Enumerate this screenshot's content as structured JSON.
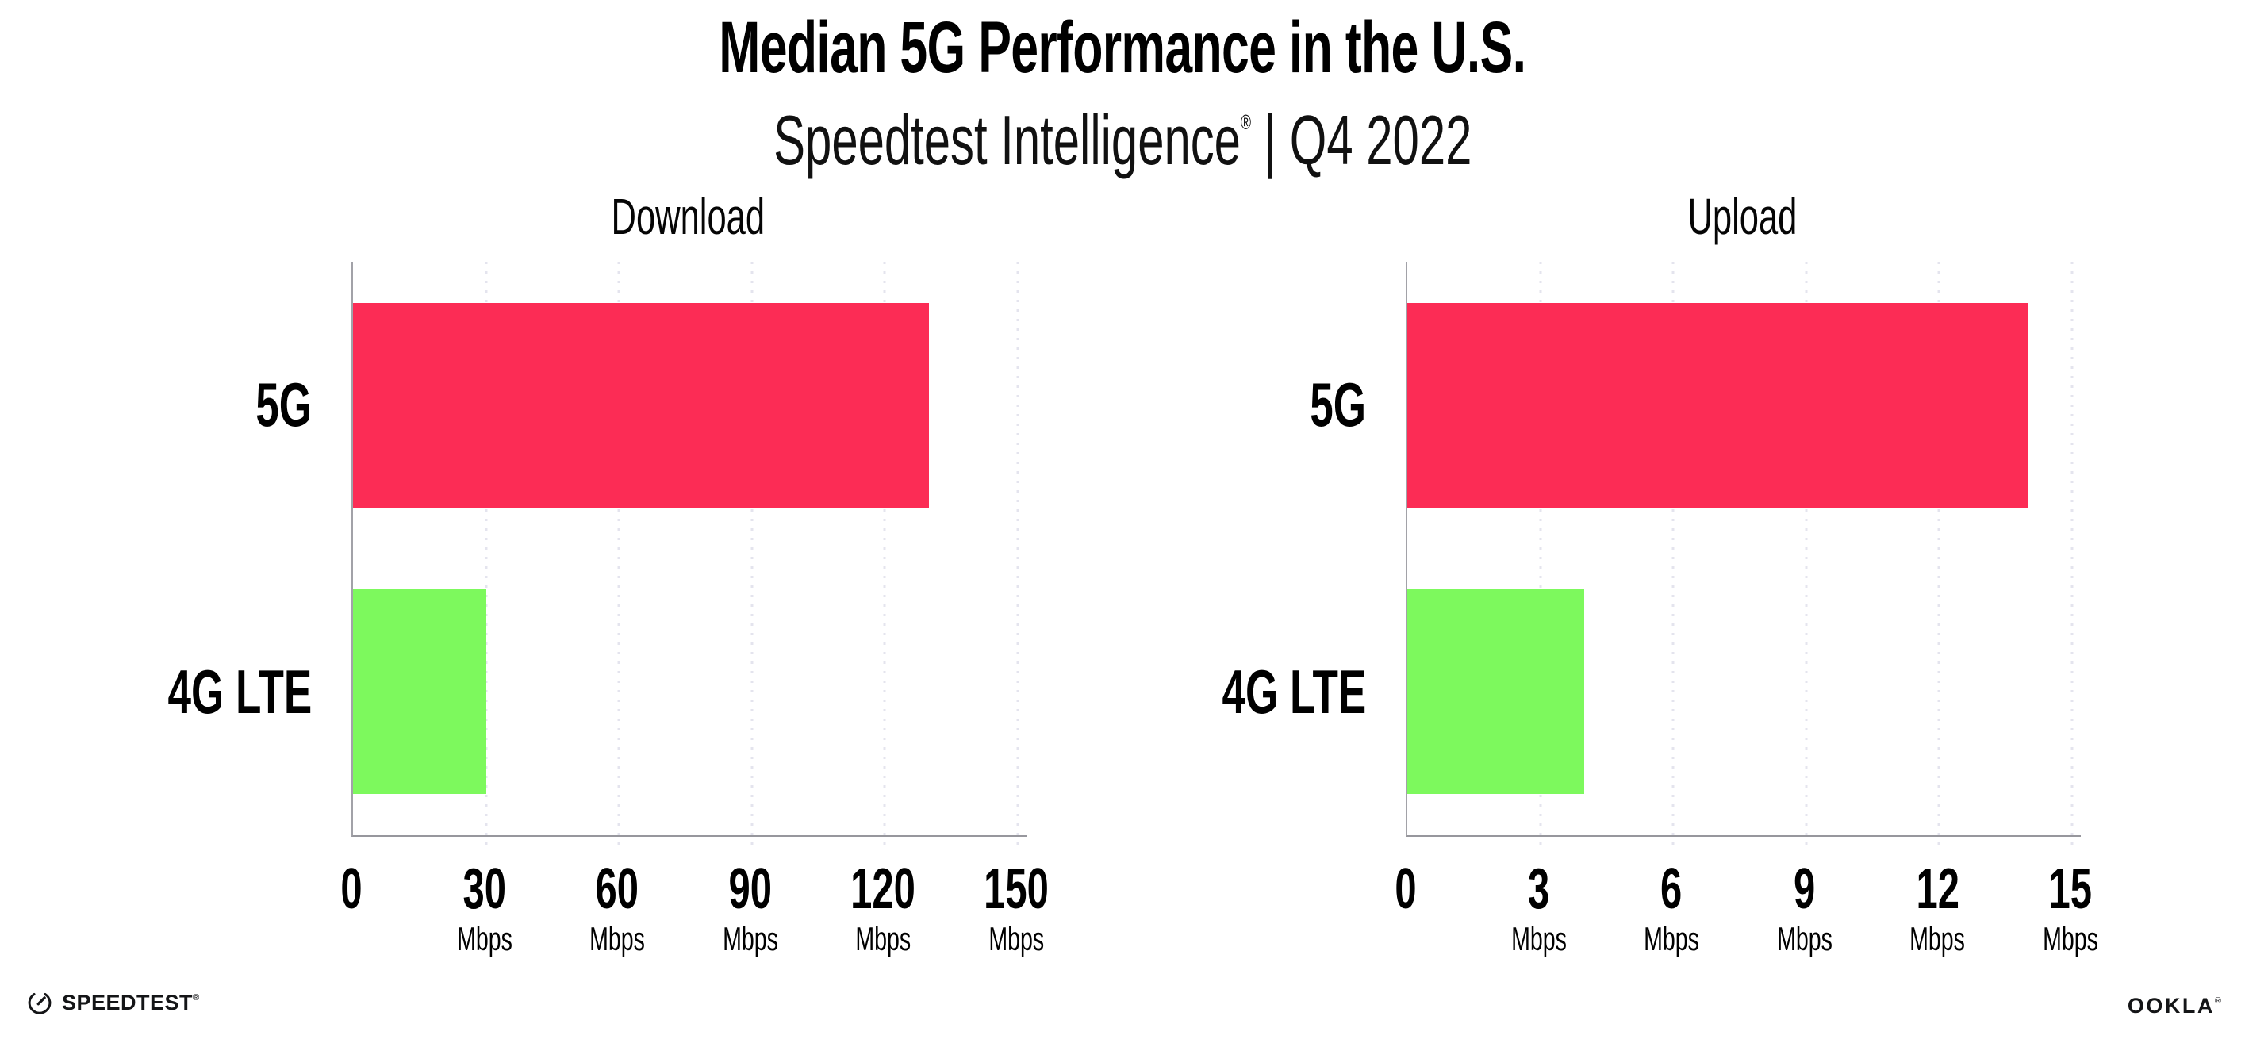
{
  "header": {
    "title": "Median 5G Performance in the U.S.",
    "subtitle_brand": "Speedtest Intelligence",
    "subtitle_reg": "®",
    "subtitle_sep": " | ",
    "subtitle_period": "Q4 2022"
  },
  "chart_data": [
    {
      "type": "bar",
      "orientation": "horizontal",
      "title": "Download",
      "categories": [
        "5G",
        "4G LTE"
      ],
      "values": [
        130,
        30
      ],
      "unit": "Mbps",
      "xticks": [
        0,
        30,
        60,
        90,
        120,
        150
      ],
      "xlim": [
        0,
        152
      ],
      "bar_colors": [
        "#FC2C55",
        "#7DF95D"
      ],
      "grid": "dotted-vertical-major",
      "legend": "none",
      "xlabel": "",
      "ylabel": ""
    },
    {
      "type": "bar",
      "orientation": "horizontal",
      "title": "Upload",
      "categories": [
        "5G",
        "4G LTE"
      ],
      "values": [
        14,
        4
      ],
      "unit": "Mbps",
      "xticks": [
        0,
        3,
        6,
        9,
        12,
        15
      ],
      "xlim": [
        0,
        15.2
      ],
      "bar_colors": [
        "#FC2C55",
        "#7DF95D"
      ],
      "grid": "dotted-vertical-major",
      "legend": "none",
      "xlabel": "",
      "ylabel": ""
    }
  ],
  "footer": {
    "speedtest_label": "SPEEDTEST",
    "speedtest_reg": "®",
    "ookla_label": "OOKLA",
    "ookla_reg": "®"
  },
  "colors": {
    "bar_5g": "#FC2C55",
    "bar_4g_lte": "#7DF95D",
    "gridline": "#E4E4EE",
    "axis_spine": "#9B9B9F",
    "text": "#000000",
    "logo_text": "#141517"
  }
}
